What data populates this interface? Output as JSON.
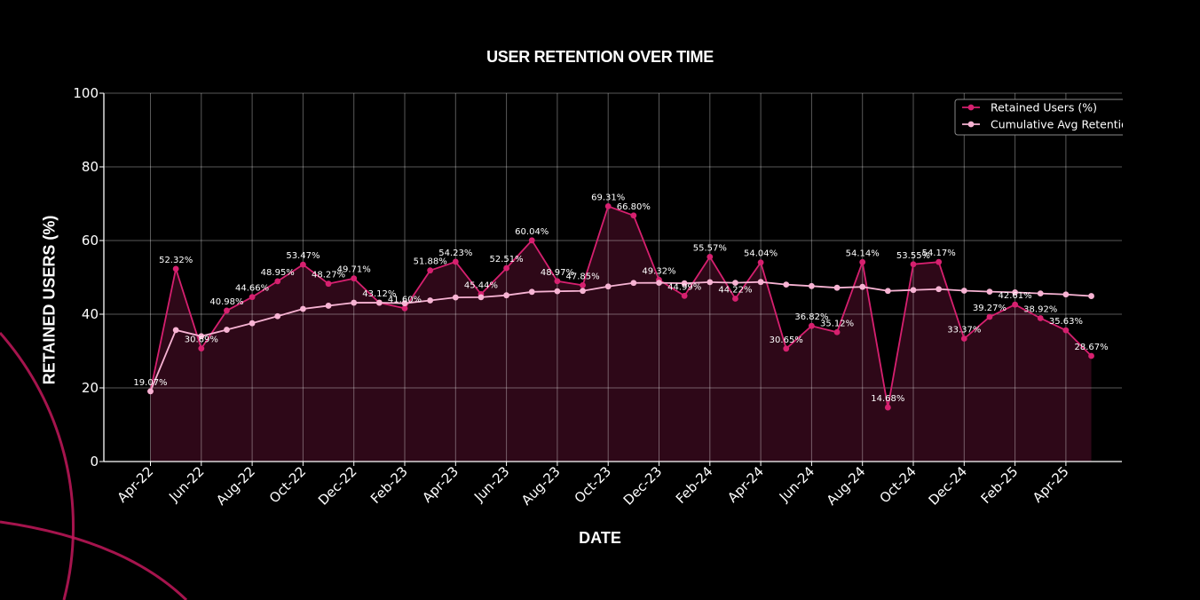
{
  "colors": {
    "background": "#000000",
    "retained": "#d6206f",
    "cumulative": "#f7b3d3",
    "fill": "#2e0818",
    "grid": "#ffffff",
    "decor": "#c2185b"
  },
  "chart_data": {
    "type": "line",
    "title": "USER RETENTION OVER TIME",
    "xlabel": "DATE",
    "ylabel": "RETAINED USERS (%)",
    "ylim": [
      0,
      100
    ],
    "y_ticks": [
      "0",
      "20",
      "40",
      "60",
      "80",
      "100"
    ],
    "x_tick_labels": [
      "Apr-22",
      "Jun-22",
      "Aug-22",
      "Oct-22",
      "Dec-22",
      "Feb-23",
      "Apr-23",
      "Jun-23",
      "Aug-23",
      "Oct-23",
      "Dec-23",
      "Feb-24",
      "Apr-24",
      "Jun-24",
      "Aug-24",
      "Oct-24",
      "Dec-24",
      "Feb-25",
      "Apr-25"
    ],
    "grid": true,
    "legend_position": "top-right",
    "x": [
      "Apr-22",
      "May-22",
      "Jun-22",
      "Jul-22",
      "Aug-22",
      "Sep-22",
      "Oct-22",
      "Nov-22",
      "Dec-22",
      "Jan-23",
      "Feb-23",
      "Mar-23",
      "Apr-23",
      "May-23",
      "Jun-23",
      "Jul-23",
      "Aug-23",
      "Sep-23",
      "Oct-23",
      "Nov-23",
      "Dec-23",
      "Jan-24",
      "Feb-24",
      "Mar-24",
      "Apr-24",
      "May-24",
      "Jun-24",
      "Jul-24",
      "Aug-24",
      "Sep-24",
      "Oct-24",
      "Nov-24",
      "Dec-24",
      "Jan-25",
      "Feb-25",
      "Mar-25",
      "Apr-25",
      "May-25"
    ],
    "series": [
      {
        "name": "Retained Users (%)",
        "values": [
          19.07,
          52.32,
          30.69,
          40.98,
          44.66,
          48.95,
          53.47,
          48.27,
          49.71,
          43.12,
          41.6,
          51.88,
          54.23,
          45.44,
          52.51,
          60.04,
          48.97,
          47.85,
          69.31,
          66.8,
          49.32,
          44.99,
          55.57,
          44.22,
          54.04,
          30.65,
          36.82,
          35.12,
          54.14,
          14.68,
          53.55,
          54.17,
          33.37,
          39.27,
          42.61,
          38.92,
          35.63,
          28.67
        ],
        "labels": [
          "19.07%",
          "52.32%",
          "30.69%",
          "40.98%",
          "44.66%",
          "48.95%",
          "53.47%",
          "48.27%",
          "49.71%",
          "43.12%",
          "41.60%",
          "51.88%",
          "54.23%",
          "45.44%",
          "52.51%",
          "60.04%",
          "48.97%",
          "47.85%",
          "69.31%",
          "66.80%",
          "49.32%",
          "44.99%",
          "55.57%",
          "44.22%",
          "54.04%",
          "30.65%",
          "36.82%",
          "35.12%",
          "54.14%",
          "14.68%",
          "53.55%",
          "54.17%",
          "33.37%",
          "39.27%",
          "42.61%",
          "38.92%",
          "35.63%",
          "28.67%"
        ]
      },
      {
        "name": "Cumulative Avg Retention",
        "values": [
          19.07,
          35.7,
          34.03,
          35.77,
          37.55,
          39.45,
          41.45,
          42.3,
          43.12,
          43.12,
          42.97,
          43.73,
          44.55,
          44.61,
          45.14,
          46.07,
          46.23,
          46.32,
          47.53,
          48.49,
          48.53,
          48.39,
          48.71,
          48.52,
          48.75,
          48.05,
          47.63,
          47.18,
          47.42,
          46.33,
          46.56,
          46.8,
          46.39,
          46.12,
          45.93,
          45.63,
          45.36,
          44.92
        ]
      }
    ],
    "legend": [
      "Retained Users (%)",
      "Cumulative Avg Retention"
    ]
  }
}
